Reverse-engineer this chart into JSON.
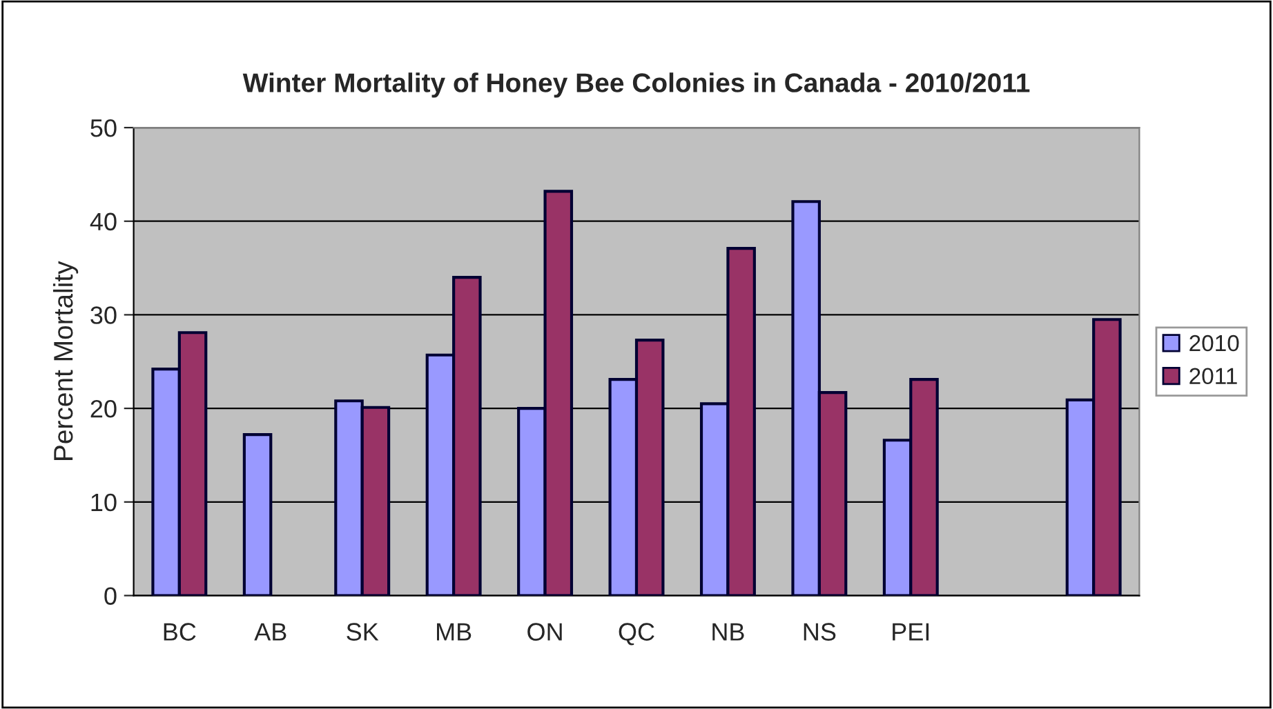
{
  "chart_data": {
    "type": "bar",
    "title": "Winter Mortality of Honey Bee Colonies in Canada - 2010/2011",
    "ylabel": "Percent Mortality",
    "categories": [
      "BC",
      "AB",
      "SK",
      "MB",
      "ON",
      "QC",
      "NB",
      "NS",
      "PEI",
      null,
      null
    ],
    "series": [
      {
        "name": "2010",
        "color": "#9999ff",
        "values": [
          24.2,
          17.2,
          20.8,
          25.7,
          20,
          23.1,
          20.5,
          42.1,
          16.6,
          null,
          20.9
        ]
      },
      {
        "name": "2011",
        "color": "#993366",
        "values": [
          28.1,
          null,
          20.1,
          34,
          43.2,
          27.3,
          37.1,
          21.7,
          23.1,
          null,
          29.5
        ]
      }
    ],
    "ylim": [
      0,
      50
    ],
    "yticks": [
      0,
      10,
      20,
      30,
      40,
      50
    ],
    "grid": "y",
    "legend": "right"
  }
}
